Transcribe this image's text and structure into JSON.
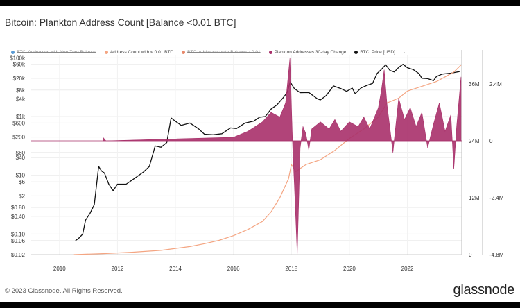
{
  "title": "Bitcoin: Plankton Address Count [Balance <0.01 BTC]",
  "legend": [
    {
      "label": "BTC: Addresses with Non-Zero Balance",
      "color": "#5b9bd5",
      "struck": true
    },
    {
      "label": "Address Count with < 0.01 BTC",
      "color": "#f4a582",
      "struck": false
    },
    {
      "label": "BTC: Addresses with Balance ≥ 0.01",
      "color": "#e8896b",
      "struck": true
    },
    {
      "label": "Plankton Addresses 30-day Change",
      "color": "#a8306a",
      "struck": false
    },
    {
      "label": "BTC: Price [USD]",
      "color": "#111111",
      "struck": false
    }
  ],
  "legend_end": "-",
  "footer": "© 2023 Glassnode. All Rights Reserved.",
  "brand": "glassnode",
  "chart_data": {
    "type": "line",
    "title": "Bitcoin: Plankton Address Count [Balance <0.01 BTC]",
    "x_ticks": [
      "2010",
      "2012",
      "2014",
      "2016",
      "2018",
      "2020",
      "2022"
    ],
    "x_range": [
      2009.0,
      2023.9
    ],
    "y_left_ticks": [
      "$100k",
      "$60k",
      "$20k",
      "$8k",
      "$4k",
      "$1k",
      "$600",
      "$200",
      "$60",
      "$40",
      "$10",
      "$6",
      "$2",
      "$0.80",
      "$0.40",
      "$0.10",
      "$0.06",
      "$0.02"
    ],
    "y_left_scale": "log",
    "y_left_range": [
      0.02,
      120000
    ],
    "y_mid_ticks": [
      "36M",
      "24M",
      "12M",
      "0"
    ],
    "y_mid_range": [
      0,
      42000000
    ],
    "y_right_ticks": [
      "2.4M",
      "0",
      "-2.4M",
      "-4.8M"
    ],
    "y_right_range": [
      -4800000,
      3600000
    ],
    "series": [
      {
        "name": "BTC: Price [USD]",
        "axis": "left",
        "color": "#111111",
        "x": [
          2010.55,
          2010.65,
          2010.8,
          2010.9,
          2011.05,
          2011.2,
          2011.35,
          2011.45,
          2011.55,
          2011.7,
          2011.85,
          2012.0,
          2012.3,
          2012.6,
          2012.9,
          2013.1,
          2013.3,
          2013.5,
          2013.7,
          2013.85,
          2013.95,
          2014.2,
          2014.5,
          2014.8,
          2015.0,
          2015.3,
          2015.6,
          2015.9,
          2016.1,
          2016.4,
          2016.7,
          2016.9,
          2017.1,
          2017.3,
          2017.5,
          2017.7,
          2017.85,
          2017.96,
          2018.1,
          2018.3,
          2018.6,
          2018.9,
          2019.0,
          2019.2,
          2019.45,
          2019.7,
          2019.9,
          2020.1,
          2020.2,
          2020.4,
          2020.6,
          2020.8,
          2020.95,
          2021.1,
          2021.25,
          2021.4,
          2021.55,
          2021.7,
          2021.85,
          2022.0,
          2022.2,
          2022.4,
          2022.5,
          2022.7,
          2022.9,
          2023.0,
          2023.2,
          2023.5,
          2023.8
        ],
        "y": [
          0.06,
          0.07,
          0.1,
          0.3,
          0.5,
          1.0,
          20,
          14,
          12,
          5,
          3,
          5,
          5,
          8,
          13,
          20,
          100,
          90,
          130,
          900,
          750,
          500,
          600,
          380,
          250,
          240,
          260,
          410,
          390,
          600,
          700,
          950,
          1000,
          1800,
          2500,
          4200,
          6500,
          15000,
          9000,
          6500,
          6600,
          4000,
          3700,
          5200,
          11000,
          9000,
          7200,
          9300,
          6000,
          9400,
          11500,
          13500,
          29000,
          40000,
          58000,
          37000,
          33000,
          47000,
          60000,
          46000,
          40000,
          29000,
          20000,
          19500,
          16800,
          23000,
          28000,
          30000,
          34000
        ]
      },
      {
        "name": "Address Count with < 0.01 BTC",
        "axis": "mid",
        "color": "#f4a582",
        "x": [
          2010.5,
          2011.5,
          2012.5,
          2013.5,
          2014.0,
          2014.5,
          2015.0,
          2015.5,
          2016.0,
          2016.5,
          2017.0,
          2017.3,
          2017.6,
          2017.9,
          2018.0,
          2018.15,
          2018.5,
          2019.0,
          2019.5,
          2020.0,
          2020.5,
          2021.0,
          2021.3,
          2021.7,
          2022.0,
          2022.5,
          2023.0,
          2023.3,
          2023.6,
          2023.85
        ],
        "y": [
          0,
          200000,
          500000,
          900000,
          1300000,
          1700000,
          2300000,
          3000000,
          4000000,
          5300000,
          7000000,
          9000000,
          12000000,
          16000000,
          19000000,
          17500000,
          19000000,
          20000000,
          22000000,
          24500000,
          26500000,
          29000000,
          32000000,
          33000000,
          34500000,
          35500000,
          36500000,
          37500000,
          38500000,
          40000000
        ]
      },
      {
        "name": "Plankton Addresses 30-day Change",
        "axis": "right",
        "color": "#a8306a",
        "x": [
          2011.5,
          2011.6,
          2016.0,
          2016.5,
          2017.0,
          2017.3,
          2017.6,
          2017.8,
          2017.95,
          2018.05,
          2018.1,
          2018.2,
          2018.3,
          2018.4,
          2018.5,
          2018.6,
          2018.7,
          2019.0,
          2019.3,
          2019.5,
          2019.7,
          2020.0,
          2020.3,
          2020.5,
          2020.7,
          2021.0,
          2021.1,
          2021.2,
          2021.3,
          2021.5,
          2021.7,
          2021.9,
          2022.1,
          2022.3,
          2022.5,
          2022.7,
          2022.9,
          2023.1,
          2023.3,
          2023.5,
          2023.6,
          2023.7,
          2023.85
        ],
        "y": [
          150000,
          0,
          150000,
          400000,
          800000,
          1200000,
          1000000,
          1600000,
          3500000,
          -500000,
          -1800000,
          -4800000,
          -300000,
          600000,
          300000,
          -400000,
          500000,
          800000,
          500000,
          900000,
          400000,
          800000,
          600000,
          1000000,
          500000,
          1400000,
          2100000,
          3000000,
          1500000,
          -500000,
          1800000,
          900000,
          1400000,
          600000,
          1200000,
          -300000,
          700000,
          1600000,
          400000,
          1100000,
          -1200000,
          600000,
          2700000
        ]
      }
    ]
  }
}
